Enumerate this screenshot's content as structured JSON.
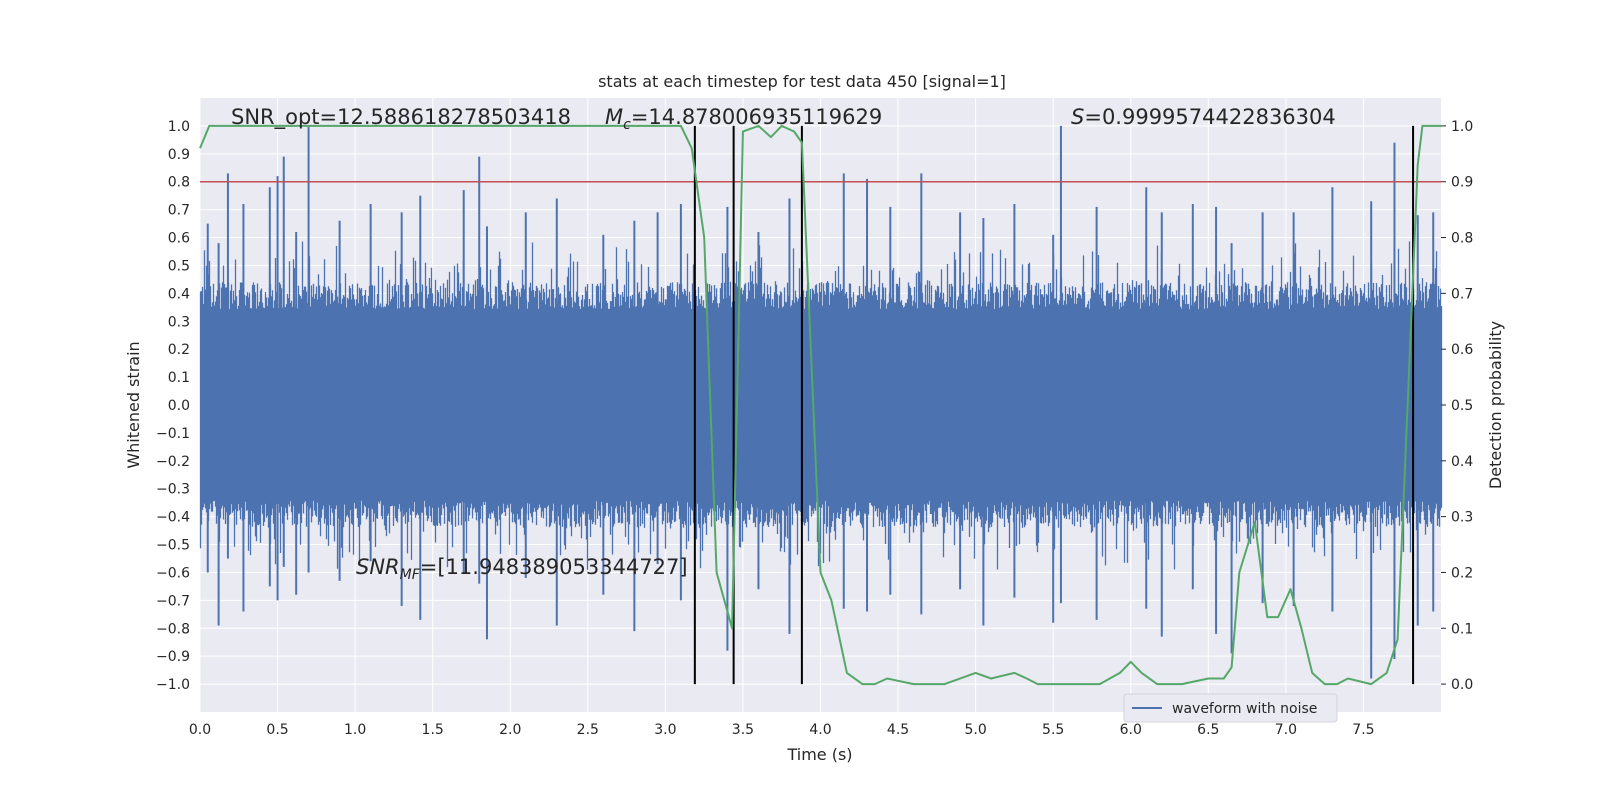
{
  "chart_data": {
    "type": "line",
    "title": "stats at each timestep for test data 450 [signal=1]",
    "xlabel": "Time (s)",
    "ylabel": "Whitened strain",
    "y2label": "Detection probability",
    "xlim": [
      0.0,
      8.0
    ],
    "ylim": [
      -1.1,
      1.1
    ],
    "y2lim": [
      -0.05,
      1.05
    ],
    "xticks": [
      "0.0",
      "0.5",
      "1.0",
      "1.5",
      "2.0",
      "2.5",
      "3.0",
      "3.5",
      "4.0",
      "4.5",
      "5.0",
      "5.5",
      "6.0",
      "6.5",
      "7.0",
      "7.5"
    ],
    "yticks": [
      "1.0",
      "0.9",
      "0.8",
      "0.7",
      "0.6",
      "0.5",
      "0.4",
      "0.3",
      "0.2",
      "0.1",
      "0.0",
      "−0.1",
      "−0.2",
      "−0.3",
      "−0.4",
      "−0.5",
      "−0.6",
      "−0.7",
      "−0.8",
      "−0.9",
      "−1.0"
    ],
    "y2ticks": [
      "1.0",
      "0.9",
      "0.8",
      "0.7",
      "0.6",
      "0.5",
      "0.4",
      "0.3",
      "0.2",
      "0.1",
      "0.0"
    ],
    "grid": true,
    "legend": {
      "placement": "lower-right",
      "entries": [
        "waveform with noise"
      ]
    },
    "colors": {
      "waveform": "#4c72b0",
      "probability": "#55a868",
      "threshold": "#c44e52",
      "markers": "#000000",
      "background": "#eaeaf2",
      "grid": "#ffffff"
    },
    "annotations": {
      "snr_opt": "SNR_opt=12.588618278503418",
      "mc_symbol": "M",
      "mc_sub": "c",
      "mc_value": "=14.878006935119629",
      "s_symbol": "S",
      "s_value": "=0.9999574422836304",
      "snr_mf_symbol": "SNR",
      "snr_mf_sub": "MF",
      "snr_mf_value": "=[11.948389053344727]"
    },
    "threshold_y": 0.8,
    "marker_lines_x": [
      3.19,
      3.44,
      3.88,
      7.82
    ],
    "series": [
      {
        "name": "waveform with noise",
        "noise_envelope": 0.44,
        "spikes": [
          [
            0.05,
            0.65,
            -0.6
          ],
          [
            0.12,
            0.58,
            -0.79
          ],
          [
            0.18,
            0.83,
            -0.55
          ],
          [
            0.28,
            0.72,
            -0.74
          ],
          [
            0.45,
            0.78,
            -0.65
          ],
          [
            0.5,
            0.82,
            -0.7
          ],
          [
            0.54,
            0.89,
            -0.58
          ],
          [
            0.62,
            0.62,
            -0.68
          ],
          [
            0.7,
            1.0,
            -0.6
          ],
          [
            0.9,
            0.66,
            -0.63
          ],
          [
            1.1,
            0.72,
            -0.56
          ],
          [
            1.3,
            0.69,
            -0.72
          ],
          [
            1.42,
            0.75,
            -0.77
          ],
          [
            1.7,
            0.77,
            -0.6
          ],
          [
            1.8,
            0.89,
            -0.64
          ],
          [
            1.85,
            0.64,
            -0.84
          ],
          [
            2.1,
            0.69,
            -0.62
          ],
          [
            2.3,
            0.74,
            -0.79
          ],
          [
            2.6,
            0.61,
            -0.68
          ],
          [
            2.8,
            0.66,
            -0.81
          ],
          [
            2.95,
            0.69,
            -0.57
          ],
          [
            3.1,
            0.72,
            -0.7
          ],
          [
            3.4,
            0.71,
            -0.88
          ],
          [
            3.6,
            0.62,
            -0.66
          ],
          [
            3.8,
            0.74,
            -0.82
          ],
          [
            4.15,
            0.83,
            -0.73
          ],
          [
            4.3,
            0.81,
            -0.74
          ],
          [
            4.45,
            0.71,
            -0.68
          ],
          [
            4.65,
            0.83,
            -0.75
          ],
          [
            4.9,
            0.69,
            -0.66
          ],
          [
            5.05,
            0.67,
            -0.79
          ],
          [
            5.25,
            0.72,
            -0.69
          ],
          [
            5.5,
            0.61,
            -0.78
          ],
          [
            5.55,
            1.0,
            -0.71
          ],
          [
            5.78,
            0.71,
            -0.77
          ],
          [
            6.1,
            0.78,
            -0.73
          ],
          [
            6.2,
            0.69,
            -0.83
          ],
          [
            6.4,
            0.72,
            -0.66
          ],
          [
            6.55,
            0.71,
            -0.82
          ],
          [
            6.65,
            0.58,
            -0.89
          ],
          [
            6.85,
            0.69,
            -0.71
          ],
          [
            7.05,
            0.69,
            -0.72
          ],
          [
            7.3,
            0.78,
            -0.74
          ],
          [
            7.55,
            0.73,
            -0.98
          ],
          [
            7.7,
            0.94,
            -0.91
          ],
          [
            7.85,
            0.68,
            -0.79
          ],
          [
            7.95,
            0.69,
            -0.74
          ]
        ]
      },
      {
        "name": "Detection probability",
        "axis": "right",
        "x": [
          0.0,
          0.06,
          3.1,
          3.17,
          3.25,
          3.33,
          3.43,
          3.5,
          3.6,
          3.68,
          3.75,
          3.83,
          3.88,
          4.0,
          4.07,
          4.17,
          4.27,
          4.35,
          4.43,
          4.6,
          4.8,
          5.0,
          5.1,
          5.25,
          5.33,
          5.4,
          5.6,
          5.7,
          5.8,
          5.93,
          6.0,
          6.07,
          6.17,
          6.33,
          6.5,
          6.6,
          6.65,
          6.7,
          6.8,
          6.88,
          6.95,
          7.03,
          7.1,
          7.17,
          7.25,
          7.33,
          7.4,
          7.55,
          7.65,
          7.72,
          7.8,
          7.85,
          7.88,
          7.92,
          8.0
        ],
        "y": [
          0.96,
          1.0,
          1.0,
          0.96,
          0.8,
          0.2,
          0.1,
          0.99,
          1.0,
          0.98,
          1.0,
          0.99,
          0.97,
          0.2,
          0.15,
          0.02,
          0.0,
          0.0,
          0.01,
          0.0,
          0.0,
          0.02,
          0.01,
          0.02,
          0.01,
          0.0,
          0.0,
          0.0,
          0.0,
          0.02,
          0.04,
          0.02,
          0.0,
          0.0,
          0.01,
          0.01,
          0.03,
          0.2,
          0.29,
          0.12,
          0.12,
          0.17,
          0.1,
          0.02,
          0.0,
          0.0,
          0.01,
          0.0,
          0.02,
          0.08,
          0.6,
          0.93,
          1.0,
          1.0,
          1.0
        ]
      }
    ]
  }
}
